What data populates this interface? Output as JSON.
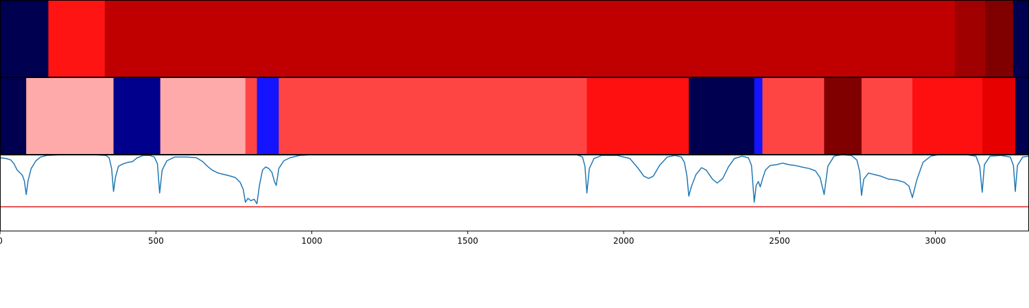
{
  "chart_data": {
    "type": "heatmap",
    "x_axis": {
      "range": [
        0,
        3300
      ],
      "ticks": [
        0,
        500,
        1000,
        1500,
        2000,
        2500,
        3000
      ],
      "tick_labels": [
        "0",
        "500",
        "1000",
        "1500",
        "2000",
        "2500",
        "3000"
      ]
    },
    "grid": false,
    "legend": "none",
    "bands": [
      {
        "segments": [
          {
            "start": 0,
            "end": 155,
            "color": "#000050"
          },
          {
            "start": 155,
            "end": 336,
            "color": "#ff1414"
          },
          {
            "start": 336,
            "end": 3062,
            "color": "#c00000"
          },
          {
            "start": 3062,
            "end": 3160,
            "color": "#a00000"
          },
          {
            "start": 3160,
            "end": 3249,
            "color": "#800000"
          },
          {
            "start": 3249,
            "end": 3300,
            "color": "#000050"
          }
        ]
      },
      {
        "segments": [
          {
            "start": 0,
            "end": 84,
            "color": "#000050"
          },
          {
            "start": 84,
            "end": 364,
            "color": "#ffaaaa"
          },
          {
            "start": 364,
            "end": 514,
            "color": "#00008c"
          },
          {
            "start": 514,
            "end": 787,
            "color": "#ffaaaa"
          },
          {
            "start": 787,
            "end": 824,
            "color": "#ff4444"
          },
          {
            "start": 824,
            "end": 894,
            "color": "#1414ff"
          },
          {
            "start": 894,
            "end": 1882,
            "color": "#ff4444"
          },
          {
            "start": 1882,
            "end": 2209,
            "color": "#ff1010"
          },
          {
            "start": 2209,
            "end": 2419,
            "color": "#000050"
          },
          {
            "start": 2419,
            "end": 2445,
            "color": "#1414ff"
          },
          {
            "start": 2445,
            "end": 2643,
            "color": "#ff4444"
          },
          {
            "start": 2643,
            "end": 2763,
            "color": "#800000"
          },
          {
            "start": 2763,
            "end": 2926,
            "color": "#ff4444"
          },
          {
            "start": 2926,
            "end": 3150,
            "color": "#ff1010"
          },
          {
            "start": 3150,
            "end": 3256,
            "color": "#e60000"
          },
          {
            "start": 3256,
            "end": 3300,
            "color": "#000050"
          }
        ]
      }
    ],
    "line_panel": {
      "y_range": [
        0,
        1
      ],
      "threshold": 0.32,
      "threshold_color": "#e41a1c",
      "series": [
        {
          "color": "#1f77b4",
          "points": [
            [
              0,
              0.96
            ],
            [
              20,
              0.95
            ],
            [
              35,
              0.93
            ],
            [
              45,
              0.88
            ],
            [
              55,
              0.8
            ],
            [
              65,
              0.76
            ],
            [
              72,
              0.73
            ],
            [
              78,
              0.66
            ],
            [
              84,
              0.48
            ],
            [
              90,
              0.66
            ],
            [
              100,
              0.82
            ],
            [
              115,
              0.92
            ],
            [
              130,
              0.97
            ],
            [
              150,
              0.99
            ],
            [
              200,
              1.0
            ],
            [
              300,
              1.0
            ],
            [
              340,
              0.99
            ],
            [
              350,
              0.96
            ],
            [
              358,
              0.82
            ],
            [
              364,
              0.52
            ],
            [
              370,
              0.7
            ],
            [
              380,
              0.85
            ],
            [
              395,
              0.88
            ],
            [
              410,
              0.9
            ],
            [
              425,
              0.91
            ],
            [
              440,
              0.96
            ],
            [
              460,
              0.99
            ],
            [
              480,
              0.99
            ],
            [
              495,
              0.97
            ],
            [
              505,
              0.88
            ],
            [
              512,
              0.5
            ],
            [
              520,
              0.8
            ],
            [
              535,
              0.92
            ],
            [
              560,
              0.97
            ],
            [
              600,
              0.97
            ],
            [
              630,
              0.96
            ],
            [
              650,
              0.91
            ],
            [
              665,
              0.85
            ],
            [
              680,
              0.8
            ],
            [
              700,
              0.76
            ],
            [
              720,
              0.74
            ],
            [
              740,
              0.72
            ],
            [
              755,
              0.7
            ],
            [
              770,
              0.64
            ],
            [
              780,
              0.55
            ],
            [
              787,
              0.38
            ],
            [
              795,
              0.43
            ],
            [
              805,
              0.4
            ],
            [
              815,
              0.42
            ],
            [
              824,
              0.36
            ],
            [
              832,
              0.6
            ],
            [
              842,
              0.8
            ],
            [
              852,
              0.84
            ],
            [
              862,
              0.82
            ],
            [
              872,
              0.77
            ],
            [
              880,
              0.65
            ],
            [
              886,
              0.6
            ],
            [
              894,
              0.82
            ],
            [
              910,
              0.92
            ],
            [
              930,
              0.96
            ],
            [
              960,
              0.99
            ],
            [
              1000,
              1.0
            ],
            [
              1850,
              1.0
            ],
            [
              1868,
              0.97
            ],
            [
              1876,
              0.85
            ],
            [
              1882,
              0.5
            ],
            [
              1890,
              0.82
            ],
            [
              1905,
              0.95
            ],
            [
              1930,
              0.99
            ],
            [
              1980,
              0.99
            ],
            [
              2020,
              0.95
            ],
            [
              2045,
              0.83
            ],
            [
              2065,
              0.72
            ],
            [
              2080,
              0.69
            ],
            [
              2095,
              0.72
            ],
            [
              2115,
              0.86
            ],
            [
              2140,
              0.97
            ],
            [
              2165,
              0.99
            ],
            [
              2185,
              0.97
            ],
            [
              2195,
              0.9
            ],
            [
              2203,
              0.72
            ],
            [
              2209,
              0.46
            ],
            [
              2217,
              0.58
            ],
            [
              2232,
              0.74
            ],
            [
              2250,
              0.83
            ],
            [
              2265,
              0.8
            ],
            [
              2285,
              0.68
            ],
            [
              2300,
              0.63
            ],
            [
              2318,
              0.69
            ],
            [
              2336,
              0.84
            ],
            [
              2355,
              0.95
            ],
            [
              2380,
              0.98
            ],
            [
              2400,
              0.96
            ],
            [
              2410,
              0.86
            ],
            [
              2419,
              0.38
            ],
            [
              2425,
              0.6
            ],
            [
              2432,
              0.65
            ],
            [
              2438,
              0.58
            ],
            [
              2445,
              0.68
            ],
            [
              2455,
              0.8
            ],
            [
              2470,
              0.86
            ],
            [
              2490,
              0.87
            ],
            [
              2510,
              0.89
            ],
            [
              2530,
              0.87
            ],
            [
              2550,
              0.86
            ],
            [
              2570,
              0.84
            ],
            [
              2595,
              0.82
            ],
            [
              2615,
              0.79
            ],
            [
              2630,
              0.7
            ],
            [
              2643,
              0.48
            ],
            [
              2655,
              0.85
            ],
            [
              2675,
              0.98
            ],
            [
              2700,
              1.0
            ],
            [
              2730,
              0.99
            ],
            [
              2748,
              0.93
            ],
            [
              2757,
              0.78
            ],
            [
              2763,
              0.47
            ],
            [
              2770,
              0.68
            ],
            [
              2785,
              0.76
            ],
            [
              2805,
              0.74
            ],
            [
              2825,
              0.72
            ],
            [
              2850,
              0.68
            ],
            [
              2875,
              0.67
            ],
            [
              2900,
              0.64
            ],
            [
              2915,
              0.59
            ],
            [
              2926,
              0.44
            ],
            [
              2940,
              0.67
            ],
            [
              2960,
              0.9
            ],
            [
              2985,
              0.98
            ],
            [
              3010,
              1.0
            ],
            [
              3100,
              1.0
            ],
            [
              3130,
              0.98
            ],
            [
              3142,
              0.85
            ],
            [
              3150,
              0.51
            ],
            [
              3157,
              0.87
            ],
            [
              3175,
              0.98
            ],
            [
              3210,
              0.99
            ],
            [
              3240,
              0.97
            ],
            [
              3250,
              0.86
            ],
            [
              3256,
              0.52
            ],
            [
              3263,
              0.86
            ],
            [
              3280,
              0.97
            ],
            [
              3300,
              0.98
            ]
          ]
        }
      ]
    }
  }
}
